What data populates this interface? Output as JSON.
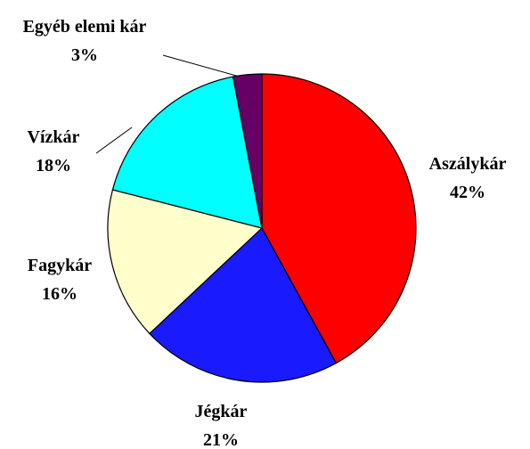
{
  "chart_data": {
    "type": "pie",
    "categories": [
      "Aszálykár",
      "Jégkár",
      "Fagykár",
      "Vízkár",
      "Egyéb elemi kár"
    ],
    "values": [
      42,
      21,
      16,
      18,
      3
    ],
    "value_labels": [
      "42%",
      "21%",
      "16%",
      "18%",
      "3%"
    ],
    "colors": [
      "#ff0000",
      "#1a1aff",
      "#ffffcc",
      "#00ffff",
      "#660066"
    ]
  }
}
